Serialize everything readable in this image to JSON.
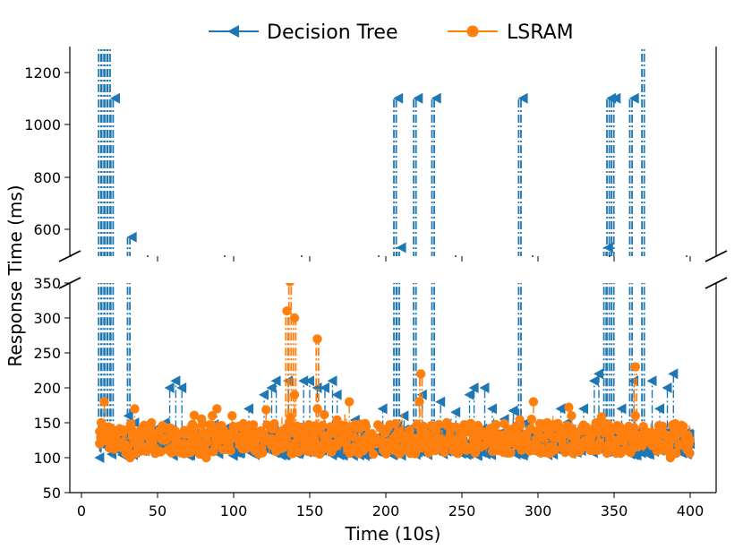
{
  "chart_data": {
    "type": "line",
    "ylabel": "Response Time (ms)",
    "xlabel": "Time (10s)",
    "legend": {
      "placement": "top-center",
      "entries": [
        "Decision Tree",
        "LSRAM"
      ]
    },
    "colors": {
      "Decision Tree": "#1f77b4",
      "LSRAM": "#ff7f0e"
    },
    "xlim": [
      -5,
      418
    ],
    "x_ticks": [
      "0",
      "50",
      "100",
      "150",
      "200",
      "250",
      "300",
      "350",
      "400"
    ],
    "broken_axis": {
      "upper_ylim": [
        500,
        1300
      ],
      "lower_ylim": [
        50,
        352
      ],
      "upper_ticks": [
        "600",
        "800",
        "1000",
        "1200"
      ],
      "lower_ticks": [
        "50",
        "100",
        "150",
        "200",
        "250",
        "300",
        "350"
      ]
    },
    "series": [
      {
        "name": "Decision Tree",
        "marker": "left-triangle",
        "linestyle": "dash-dot",
        "spikes": [
          {
            "x": 12,
            "peak": 1300
          },
          {
            "x": 14,
            "peak": 1300
          },
          {
            "x": 16,
            "peak": 1300
          },
          {
            "x": 18,
            "peak": 1300
          },
          {
            "x": 20,
            "peak": 1100
          },
          {
            "x": 31,
            "peak": 570
          },
          {
            "x": 206,
            "peak": 1100
          },
          {
            "x": 208,
            "peak": 530
          },
          {
            "x": 219,
            "peak": 1100
          },
          {
            "x": 231,
            "peak": 1100
          },
          {
            "x": 288,
            "peak": 1100
          },
          {
            "x": 344,
            "peak": 530
          },
          {
            "x": 346,
            "peak": 1100
          },
          {
            "x": 349,
            "peak": 1100
          },
          {
            "x": 361,
            "peak": 1100
          },
          {
            "x": 369,
            "peak": 1300
          }
        ],
        "highlights": [
          {
            "x": 12,
            "y": 100
          },
          {
            "x": 15,
            "y": 120
          },
          {
            "x": 20,
            "y": 105
          },
          {
            "x": 24,
            "y": 110
          },
          {
            "x": 31,
            "y": 160
          },
          {
            "x": 35,
            "y": 150
          },
          {
            "x": 42,
            "y": 145
          },
          {
            "x": 48,
            "y": 140
          },
          {
            "x": 55,
            "y": 150
          },
          {
            "x": 58,
            "y": 200
          },
          {
            "x": 62,
            "y": 210
          },
          {
            "x": 66,
            "y": 200
          },
          {
            "x": 72,
            "y": 130
          },
          {
            "x": 80,
            "y": 120
          },
          {
            "x": 90,
            "y": 135
          },
          {
            "x": 102,
            "y": 140
          },
          {
            "x": 110,
            "y": 170
          },
          {
            "x": 120,
            "y": 190
          },
          {
            "x": 125,
            "y": 200
          },
          {
            "x": 128,
            "y": 210
          },
          {
            "x": 136,
            "y": 210
          },
          {
            "x": 146,
            "y": 210
          },
          {
            "x": 150,
            "y": 210
          },
          {
            "x": 155,
            "y": 200
          },
          {
            "x": 160,
            "y": 200
          },
          {
            "x": 165,
            "y": 210
          },
          {
            "x": 168,
            "y": 190
          },
          {
            "x": 185,
            "y": 145
          },
          {
            "x": 198,
            "y": 170
          },
          {
            "x": 212,
            "y": 160
          },
          {
            "x": 224,
            "y": 190
          },
          {
            "x": 236,
            "y": 180
          },
          {
            "x": 246,
            "y": 165
          },
          {
            "x": 255,
            "y": 190
          },
          {
            "x": 258,
            "y": 200
          },
          {
            "x": 265,
            "y": 200
          },
          {
            "x": 270,
            "y": 170
          },
          {
            "x": 278,
            "y": 155
          },
          {
            "x": 292,
            "y": 150
          },
          {
            "x": 300,
            "y": 130
          },
          {
            "x": 315,
            "y": 170
          },
          {
            "x": 322,
            "y": 140
          },
          {
            "x": 330,
            "y": 170
          },
          {
            "x": 337,
            "y": 210
          },
          {
            "x": 340,
            "y": 220
          },
          {
            "x": 355,
            "y": 170
          },
          {
            "x": 363,
            "y": 210
          },
          {
            "x": 375,
            "y": 210
          },
          {
            "x": 380,
            "y": 170
          },
          {
            "x": 385,
            "y": 200
          },
          {
            "x": 389,
            "y": 220
          },
          {
            "x": 395,
            "y": 110
          },
          {
            "x": 400,
            "y": 120
          }
        ]
      },
      {
        "name": "LSRAM",
        "marker": "circle",
        "linestyle": "dash-dot",
        "spikes": [
          {
            "x": 135,
            "peak": 310
          },
          {
            "x": 137,
            "peak": 352
          },
          {
            "x": 140,
            "peak": 300
          },
          {
            "x": 155,
            "peak": 270
          },
          {
            "x": 223,
            "peak": 220
          },
          {
            "x": 364,
            "peak": 230
          }
        ],
        "highlights": [
          {
            "x": 12,
            "y": 120
          },
          {
            "x": 13,
            "y": 150
          },
          {
            "x": 15,
            "y": 180
          },
          {
            "x": 32,
            "y": 100
          },
          {
            "x": 35,
            "y": 170
          },
          {
            "x": 46,
            "y": 150
          },
          {
            "x": 60,
            "y": 130
          },
          {
            "x": 75,
            "y": 120
          },
          {
            "x": 82,
            "y": 100
          },
          {
            "x": 86,
            "y": 160
          },
          {
            "x": 89,
            "y": 170
          },
          {
            "x": 99,
            "y": 160
          },
          {
            "x": 110,
            "y": 130
          },
          {
            "x": 114,
            "y": 110
          },
          {
            "x": 140,
            "y": 190
          },
          {
            "x": 155,
            "y": 170
          },
          {
            "x": 176,
            "y": 180
          },
          {
            "x": 199,
            "y": 110
          },
          {
            "x": 222,
            "y": 180
          },
          {
            "x": 240,
            "y": 150
          },
          {
            "x": 278,
            "y": 130
          },
          {
            "x": 297,
            "y": 180
          },
          {
            "x": 306,
            "y": 150
          },
          {
            "x": 322,
            "y": 160
          },
          {
            "x": 335,
            "y": 130
          },
          {
            "x": 364,
            "y": 160
          },
          {
            "x": 380,
            "y": 120
          },
          {
            "x": 384,
            "y": 110
          },
          {
            "x": 387,
            "y": 100
          },
          {
            "x": 400,
            "y": 125
          }
        ]
      }
    ]
  }
}
